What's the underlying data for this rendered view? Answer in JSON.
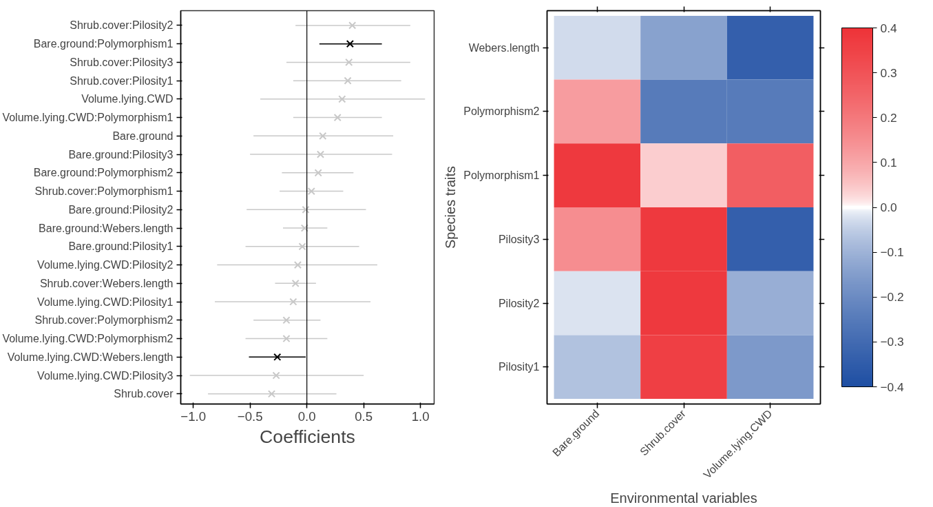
{
  "chart_data": [
    {
      "type": "scatter",
      "orientation": "horizontal",
      "xlabel": "Coefficients",
      "marker": "cross",
      "grid": false,
      "categories": [
        "Shrub.cover:Pilosity2",
        "Bare.ground:Polymorphism1",
        "Shrub.cover:Pilosity3",
        "Shrub.cover:Pilosity1",
        "Volume.lying.CWD",
        "Volume.lying.CWD:Polymorphism1",
        "Bare.ground",
        "Bare.ground:Pilosity3",
        "Bare.ground:Polymorphism2",
        "Shrub.cover:Polymorphism1",
        "Bare.ground:Pilosity2",
        "Bare.ground:Webers.length",
        "Bare.ground:Pilosity1",
        "Volume.lying.CWD:Pilosity2",
        "Shrub.cover:Webers.length",
        "Volume.lying.CWD:Pilosity1",
        "Shrub.cover:Polymorphism2",
        "Volume.lying.CWD:Polymorphism2",
        "Volume.lying.CWD:Webers.length",
        "Volume.lying.CWD:Pilosity3",
        "Shrub.cover"
      ],
      "xlim": [
        -1.11,
        1.12
      ],
      "xticks": [
        {
          "value": -1,
          "label": "−1.0"
        },
        {
          "value": -0.5,
          "label": "−0.5"
        },
        {
          "value": 0,
          "label": "0.0"
        },
        {
          "value": 0.5,
          "label": "0.5"
        },
        {
          "value": 1,
          "label": "1.0"
        }
      ],
      "series": [
        {
          "color": "#c8c8c8",
          "values": [
            0.4,
            null,
            0.37,
            0.36,
            0.31,
            0.27,
            0.14,
            0.12,
            0.1,
            0.04,
            -0.01,
            -0.02,
            -0.04,
            -0.08,
            -0.1,
            -0.12,
            -0.18,
            -0.18,
            null,
            -0.27,
            -0.31
          ],
          "errors": [
            [
              -0.1,
              0.91
            ],
            null,
            [
              -0.18,
              0.91
            ],
            [
              -0.12,
              0.83
            ],
            [
              -0.41,
              1.04
            ],
            [
              -0.12,
              0.66
            ],
            [
              -0.47,
              0.76
            ],
            [
              -0.5,
              0.75
            ],
            [
              -0.22,
              0.41
            ],
            [
              -0.24,
              0.32
            ],
            [
              -0.53,
              0.52
            ],
            [
              -0.21,
              0.18
            ],
            [
              -0.54,
              0.46
            ],
            [
              -0.79,
              0.62
            ],
            [
              -0.28,
              0.08
            ],
            [
              -0.81,
              0.56
            ],
            [
              -0.47,
              0.12
            ],
            [
              -0.54,
              0.18
            ],
            null,
            [
              -1.03,
              0.5
            ],
            [
              -0.87,
              0.26
            ]
          ]
        },
        {
          "color": "#000000",
          "values": [
            null,
            0.38,
            null,
            null,
            null,
            null,
            null,
            null,
            null,
            null,
            null,
            null,
            null,
            null,
            null,
            null,
            null,
            null,
            -0.26,
            null,
            null
          ],
          "errors": [
            null,
            [
              0.11,
              0.66
            ],
            null,
            null,
            null,
            null,
            null,
            null,
            null,
            null,
            null,
            null,
            null,
            null,
            null,
            null,
            null,
            null,
            [
              -0.51,
              -0.01
            ],
            null,
            null
          ]
        }
      ],
      "ref_lines": [
        {
          "axis": "x",
          "value": 0,
          "color": "#000000"
        }
      ]
    },
    {
      "type": "heatmap",
      "xlabel": "Environmental variables",
      "ylabel": "Species traits",
      "categories": [
        "Bare.ground",
        "Shrub.cover",
        "Volume.lying.CWD"
      ],
      "y_categories": [
        "Webers.length",
        "Polymorphism2",
        "Polymorphism1",
        "Pilosity3",
        "Pilosity2",
        "Pilosity1"
      ],
      "cells": [
        [
          -0.03,
          -0.14,
          -0.34
        ],
        [
          0.12,
          -0.25,
          -0.25
        ],
        [
          0.38,
          0.04,
          0.27
        ],
        [
          0.15,
          0.38,
          -0.34
        ],
        [
          -0.02,
          0.38,
          -0.11
        ],
        [
          -0.07,
          0.36,
          -0.16
        ]
      ],
      "clim": [
        -0.4,
        0.4
      ],
      "cticks": [
        {
          "value": -0.4,
          "label": "−0.4"
        },
        {
          "value": -0.3,
          "label": "−0.3"
        },
        {
          "value": -0.2,
          "label": "−0.2"
        },
        {
          "value": -0.1,
          "label": "−0.1"
        },
        {
          "value": 0,
          "label": "0.0"
        },
        0.1,
        0.2,
        0.3,
        0.4
      ]
    }
  ]
}
